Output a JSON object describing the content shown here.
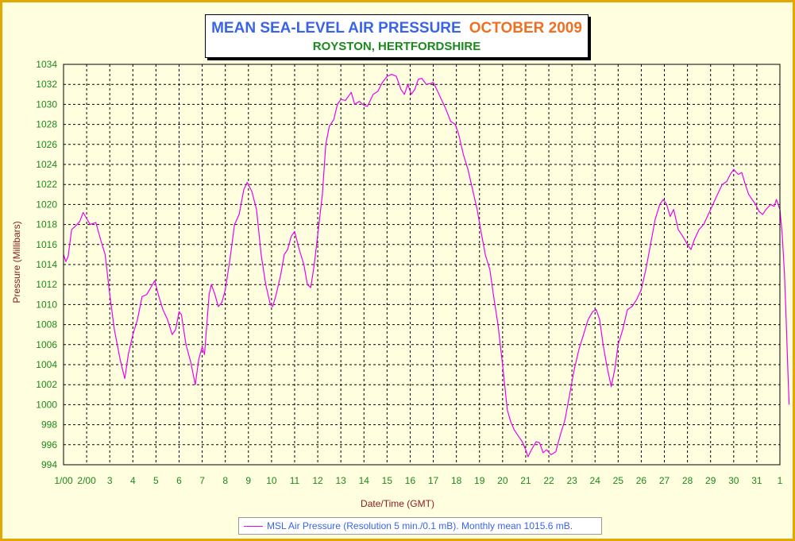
{
  "title": {
    "main": "MEAN SEA-LEVEL AIR PRESSURE",
    "month": "OCTOBER 2009",
    "subtitle": "ROYSTON, HERTFORDSHIRE"
  },
  "colors": {
    "title_main": "#3a64e8",
    "title_month": "#f07020",
    "subtitle": "#1a8a1a",
    "axis_text": "#1a8a1a",
    "series": "#ee00ee",
    "frame": "#e3a800",
    "background": "#ffffe0"
  },
  "chart_data": {
    "type": "line",
    "title": "MEAN SEA-LEVEL AIR PRESSURE OCTOBER 2009",
    "subtitle": "ROYSTON, HERTFORDSHIRE",
    "xlabel": "Date/Time (GMT)",
    "ylabel": "Pressure (Millibars)",
    "ylim": [
      994,
      1034
    ],
    "yticks": [
      994,
      996,
      998,
      1000,
      1002,
      1004,
      1006,
      1008,
      1010,
      1012,
      1014,
      1016,
      1018,
      1020,
      1022,
      1024,
      1026,
      1028,
      1030,
      1032,
      1034
    ],
    "xlim": [
      1,
      32
    ],
    "xticks": [
      {
        "x": 1,
        "label": "1/00"
      },
      {
        "x": 2,
        "label": "2/00"
      },
      {
        "x": 3,
        "label": "3"
      },
      {
        "x": 4,
        "label": "4"
      },
      {
        "x": 5,
        "label": "5"
      },
      {
        "x": 6,
        "label": "6"
      },
      {
        "x": 7,
        "label": "7"
      },
      {
        "x": 8,
        "label": "8"
      },
      {
        "x": 9,
        "label": "9"
      },
      {
        "x": 10,
        "label": "10"
      },
      {
        "x": 11,
        "label": "11"
      },
      {
        "x": 12,
        "label": "12"
      },
      {
        "x": 13,
        "label": "13"
      },
      {
        "x": 14,
        "label": "14"
      },
      {
        "x": 15,
        "label": "15"
      },
      {
        "x": 16,
        "label": "16"
      },
      {
        "x": 17,
        "label": "17"
      },
      {
        "x": 18,
        "label": "18"
      },
      {
        "x": 19,
        "label": "19"
      },
      {
        "x": 20,
        "label": "20"
      },
      {
        "x": 21,
        "label": "21"
      },
      {
        "x": 22,
        "label": "22"
      },
      {
        "x": 23,
        "label": "23"
      },
      {
        "x": 24,
        "label": "24"
      },
      {
        "x": 25,
        "label": "25"
      },
      {
        "x": 26,
        "label": "26"
      },
      {
        "x": 27,
        "label": "27"
      },
      {
        "x": 28,
        "label": "28"
      },
      {
        "x": 29,
        "label": "29"
      },
      {
        "x": 30,
        "label": "30"
      },
      {
        "x": 31,
        "label": "31"
      },
      {
        "x": 32,
        "label": "1"
      }
    ],
    "grid": true,
    "legend_placement": "bottom-center",
    "series": [
      {
        "name": "MSL Air Pressure (Resolution 5 min./0.1 mB). Monthly mean 1015.6 mB.",
        "points": [
          [
            1.0,
            1015.0
          ],
          [
            1.1,
            1014.3
          ],
          [
            1.2,
            1014.8
          ],
          [
            1.35,
            1017.5
          ],
          [
            1.5,
            1017.8
          ],
          [
            1.7,
            1018.3
          ],
          [
            1.85,
            1019.2
          ],
          [
            2.0,
            1018.6
          ],
          [
            2.15,
            1018.0
          ],
          [
            2.4,
            1018.2
          ],
          [
            2.6,
            1016.5
          ],
          [
            2.8,
            1015.0
          ],
          [
            3.0,
            1011.0
          ],
          [
            3.2,
            1007.5
          ],
          [
            3.45,
            1004.5
          ],
          [
            3.65,
            1002.6
          ],
          [
            3.8,
            1005.0
          ],
          [
            4.0,
            1007.0
          ],
          [
            4.2,
            1008.5
          ],
          [
            4.4,
            1010.8
          ],
          [
            4.6,
            1011.0
          ],
          [
            4.8,
            1011.8
          ],
          [
            4.95,
            1012.4
          ],
          [
            5.1,
            1011.0
          ],
          [
            5.3,
            1009.5
          ],
          [
            5.5,
            1008.5
          ],
          [
            5.7,
            1007.0
          ],
          [
            5.85,
            1007.5
          ],
          [
            6.0,
            1009.3
          ],
          [
            6.1,
            1009.0
          ],
          [
            6.3,
            1006.0
          ],
          [
            6.5,
            1004.3
          ],
          [
            6.7,
            1002.0
          ],
          [
            6.85,
            1004.5
          ],
          [
            7.0,
            1005.8
          ],
          [
            7.1,
            1005.0
          ],
          [
            7.3,
            1011.0
          ],
          [
            7.4,
            1012.0
          ],
          [
            7.55,
            1011.0
          ],
          [
            7.7,
            1009.8
          ],
          [
            7.85,
            1010.2
          ],
          [
            8.0,
            1011.5
          ],
          [
            8.2,
            1014.5
          ],
          [
            8.4,
            1018.0
          ],
          [
            8.6,
            1019.0
          ],
          [
            8.8,
            1021.5
          ],
          [
            8.95,
            1022.2
          ],
          [
            9.15,
            1021.3
          ],
          [
            9.35,
            1019.5
          ],
          [
            9.55,
            1015.0
          ],
          [
            9.75,
            1012.0
          ],
          [
            9.95,
            1010.0
          ],
          [
            10.05,
            1009.8
          ],
          [
            10.2,
            1011.0
          ],
          [
            10.4,
            1013.0
          ],
          [
            10.55,
            1015.0
          ],
          [
            10.7,
            1015.5
          ],
          [
            10.85,
            1016.8
          ],
          [
            11.0,
            1017.3
          ],
          [
            11.2,
            1015.5
          ],
          [
            11.4,
            1014.0
          ],
          [
            11.55,
            1012.0
          ],
          [
            11.7,
            1011.7
          ],
          [
            11.85,
            1014.0
          ],
          [
            12.0,
            1017.0
          ],
          [
            12.2,
            1021.0
          ],
          [
            12.35,
            1026.0
          ],
          [
            12.5,
            1027.8
          ],
          [
            12.7,
            1028.5
          ],
          [
            12.85,
            1030.0
          ],
          [
            13.0,
            1030.5
          ],
          [
            13.2,
            1030.4
          ],
          [
            13.45,
            1031.2
          ],
          [
            13.6,
            1030.0
          ],
          [
            13.8,
            1030.3
          ],
          [
            14.0,
            1029.9
          ],
          [
            14.15,
            1029.8
          ],
          [
            14.4,
            1031.0
          ],
          [
            14.6,
            1031.3
          ],
          [
            14.8,
            1032.2
          ],
          [
            15.0,
            1032.8
          ],
          [
            15.2,
            1033.0
          ],
          [
            15.4,
            1032.8
          ],
          [
            15.6,
            1031.5
          ],
          [
            15.75,
            1031.0
          ],
          [
            15.9,
            1032.0
          ],
          [
            16.05,
            1031.0
          ],
          [
            16.2,
            1031.5
          ],
          [
            16.35,
            1032.5
          ],
          [
            16.5,
            1032.6
          ],
          [
            16.7,
            1032.0
          ],
          [
            16.9,
            1032.1
          ],
          [
            17.0,
            1032.2
          ],
          [
            17.15,
            1031.5
          ],
          [
            17.35,
            1030.5
          ],
          [
            17.55,
            1029.5
          ],
          [
            17.75,
            1028.3
          ],
          [
            17.95,
            1028.0
          ],
          [
            18.1,
            1027.0
          ],
          [
            18.3,
            1025.0
          ],
          [
            18.5,
            1023.5
          ],
          [
            18.7,
            1021.5
          ],
          [
            18.9,
            1019.5
          ],
          [
            19.05,
            1017.5
          ],
          [
            19.25,
            1015.0
          ],
          [
            19.45,
            1013.5
          ],
          [
            19.6,
            1011.0
          ],
          [
            19.8,
            1008.0
          ],
          [
            20.0,
            1004.0
          ],
          [
            20.2,
            999.5
          ],
          [
            20.35,
            998.3
          ],
          [
            20.5,
            997.5
          ],
          [
            20.7,
            996.8
          ],
          [
            20.85,
            996.3
          ],
          [
            21.0,
            995.5
          ],
          [
            21.1,
            994.8
          ],
          [
            21.25,
            995.5
          ],
          [
            21.45,
            996.3
          ],
          [
            21.6,
            996.2
          ],
          [
            21.75,
            995.2
          ],
          [
            21.9,
            995.5
          ],
          [
            22.1,
            995.0
          ],
          [
            22.3,
            995.3
          ],
          [
            22.5,
            997.0
          ],
          [
            22.7,
            998.5
          ],
          [
            22.9,
            1001.0
          ],
          [
            23.1,
            1003.5
          ],
          [
            23.3,
            1005.5
          ],
          [
            23.5,
            1007.0
          ],
          [
            23.7,
            1008.5
          ],
          [
            23.9,
            1009.3
          ],
          [
            24.05,
            1009.5
          ],
          [
            24.2,
            1008.5
          ],
          [
            24.35,
            1006.0
          ],
          [
            24.5,
            1004.0
          ],
          [
            24.7,
            1001.8
          ],
          [
            24.85,
            1003.5
          ],
          [
            25.0,
            1006.0
          ],
          [
            25.2,
            1007.5
          ],
          [
            25.4,
            1009.5
          ],
          [
            25.6,
            1009.8
          ],
          [
            25.8,
            1010.5
          ],
          [
            26.0,
            1011.5
          ],
          [
            26.2,
            1013.5
          ],
          [
            26.4,
            1016.0
          ],
          [
            26.6,
            1018.5
          ],
          [
            26.8,
            1020.0
          ],
          [
            26.95,
            1020.5
          ],
          [
            27.1,
            1020.0
          ],
          [
            27.25,
            1018.8
          ],
          [
            27.4,
            1019.5
          ],
          [
            27.6,
            1017.5
          ],
          [
            27.8,
            1016.8
          ],
          [
            28.0,
            1016.0
          ],
          [
            28.15,
            1015.5
          ],
          [
            28.3,
            1016.5
          ],
          [
            28.5,
            1017.5
          ],
          [
            28.7,
            1018.0
          ],
          [
            28.9,
            1019.0
          ],
          [
            29.1,
            1020.0
          ],
          [
            29.3,
            1021.0
          ],
          [
            29.5,
            1022.0
          ],
          [
            29.7,
            1022.3
          ],
          [
            29.85,
            1023.0
          ],
          [
            30.0,
            1023.5
          ],
          [
            30.2,
            1023.0
          ],
          [
            30.35,
            1023.2
          ],
          [
            30.5,
            1022.0
          ],
          [
            30.65,
            1021.0
          ],
          [
            30.8,
            1020.5
          ],
          [
            30.95,
            1020.0
          ],
          [
            31.1,
            1019.3
          ],
          [
            31.25,
            1019.0
          ],
          [
            31.4,
            1019.5
          ],
          [
            31.6,
            1020.0
          ],
          [
            31.75,
            1019.8
          ],
          [
            31.85,
            1020.5
          ],
          [
            32.0,
            1019.5
          ],
          [
            32.1,
            1017.0
          ],
          [
            32.2,
            1013.0
          ],
          [
            32.28,
            1008.0
          ],
          [
            32.35,
            1003.0
          ],
          [
            32.4,
            1000.0
          ]
        ]
      }
    ]
  }
}
